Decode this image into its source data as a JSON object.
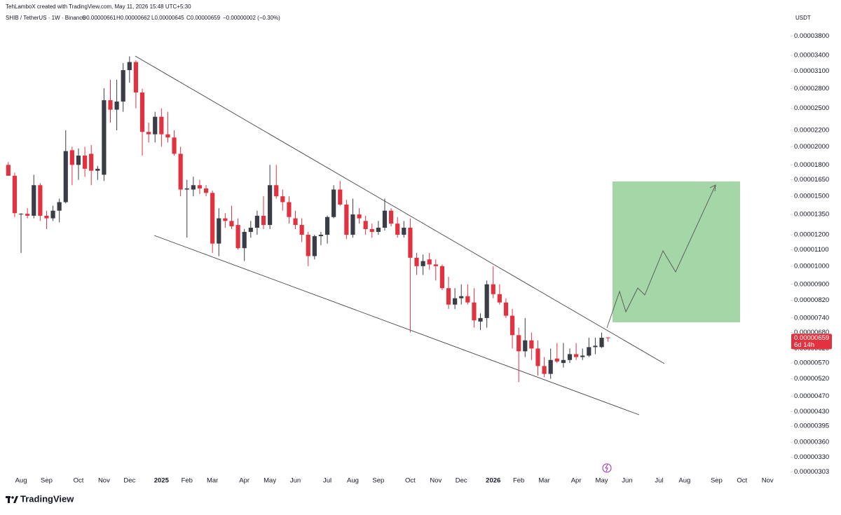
{
  "chart_data": {
    "type": "candlestick",
    "credit": "TehLamboX created with TradingView.com, May 11, 2026 15:48 UTC+5:30",
    "title": "SHIB / TetherUS · 1W · Binance",
    "ohlc_legend": {
      "open": "O0.00000661",
      "high": "H0.00000662",
      "low": "L0.00000645",
      "close": "C0.00000659",
      "change": "−0.00000002 (−0.30%)"
    },
    "y_axis_label": "USDT",
    "last_price": {
      "label": "0.00000659",
      "countdown": "6d 14h"
    },
    "brand": "TradingView",
    "log_scale": true,
    "grid": false,
    "up_color": "#3a3d45",
    "down_color": "#e2323f",
    "ylim": [
      2.95e-06,
      4e-05
    ],
    "yticks": [
      {
        "value": 3.8e-05,
        "label": "0.00003800"
      },
      {
        "value": 3.4e-05,
        "label": "0.00003400"
      },
      {
        "value": 3.1e-05,
        "label": "0.00003100"
      },
      {
        "value": 2.8e-05,
        "label": "0.00002800"
      },
      {
        "value": 2.5e-05,
        "label": "0.00002500"
      },
      {
        "value": 2.2e-05,
        "label": "0.00002200"
      },
      {
        "value": 2e-05,
        "label": "0.00002000"
      },
      {
        "value": 1.8e-05,
        "label": "0.00001800"
      },
      {
        "value": 1.65e-05,
        "label": "0.00001650"
      },
      {
        "value": 1.5e-05,
        "label": "0.00001500"
      },
      {
        "value": 1.35e-05,
        "label": "0.00001350"
      },
      {
        "value": 1.2e-05,
        "label": "0.00001200"
      },
      {
        "value": 1.1e-05,
        "label": "0.00001100"
      },
      {
        "value": 1e-05,
        "label": "0.00001000"
      },
      {
        "value": 9e-06,
        "label": "0.00000900"
      },
      {
        "value": 8.2e-06,
        "label": "0.00000820"
      },
      {
        "value": 7.4e-06,
        "label": "0.00000740"
      },
      {
        "value": 6.8e-06,
        "label": "0.00000680"
      },
      {
        "value": 6.2e-06,
        "label": "0.00000620"
      },
      {
        "value": 5.7e-06,
        "label": "0.00000570"
      },
      {
        "value": 5.2e-06,
        "label": "0.00000520"
      },
      {
        "value": 4.7e-06,
        "label": "0.00000470"
      },
      {
        "value": 4.3e-06,
        "label": "0.00000430"
      },
      {
        "value": 3.95e-06,
        "label": "0.00000395"
      },
      {
        "value": 3.6e-06,
        "label": "0.00000360"
      },
      {
        "value": 3.3e-06,
        "label": "0.00000330"
      },
      {
        "value": 3.03e-06,
        "label": "0.00000303"
      }
    ],
    "xlim": [
      -1.3,
      122.6
    ],
    "xticks": [
      {
        "value": 2,
        "label": "Aug"
      },
      {
        "value": 6,
        "label": "Sep"
      },
      {
        "value": 11,
        "label": "Oct"
      },
      {
        "value": 15,
        "label": "Nov"
      },
      {
        "value": 19,
        "label": "Dec"
      },
      {
        "value": 24,
        "label": "2025"
      },
      {
        "value": 28,
        "label": "Feb"
      },
      {
        "value": 32,
        "label": "Mar"
      },
      {
        "value": 37,
        "label": "Apr"
      },
      {
        "value": 41,
        "label": "May"
      },
      {
        "value": 45,
        "label": "Jun"
      },
      {
        "value": 50,
        "label": "Jul"
      },
      {
        "value": 54,
        "label": "Aug"
      },
      {
        "value": 58,
        "label": "Sep"
      },
      {
        "value": 63,
        "label": "Oct"
      },
      {
        "value": 67,
        "label": "Nov"
      },
      {
        "value": 71,
        "label": "Dec"
      },
      {
        "value": 76,
        "label": "2026"
      },
      {
        "value": 80,
        "label": "Feb"
      },
      {
        "value": 84,
        "label": "Mar"
      },
      {
        "value": 89,
        "label": "Apr"
      },
      {
        "value": 93,
        "label": "May"
      },
      {
        "value": 97,
        "label": "Jun"
      },
      {
        "value": 102,
        "label": "Jul"
      },
      {
        "value": 106,
        "label": "Aug"
      },
      {
        "value": 111,
        "label": "Sep"
      },
      {
        "value": 115,
        "label": "Oct"
      },
      {
        "value": 119,
        "label": "Nov"
      }
    ],
    "open": [
      1.8e-05,
      1.69e-05,
      1.35e-05,
      1.355e-05,
      1.34e-05,
      1.6e-05,
      1.34e-05,
      1.32e-05,
      1.38e-05,
      1.45e-05,
      1.96e-05,
      1.8e-05,
      1.9e-05,
      1.92e-05,
      1.74e-05,
      1.7e-05,
      2.62e-05,
      2.48e-05,
      2.6e-05,
      3.12e-05,
      3.27e-05,
      2.74e-05,
      2.18e-05,
      2.15e-05,
      2.38e-05,
      2.15e-05,
      2.11e-05,
      1.92e-05,
      1.56e-05,
      1.56e-05,
      1.6e-05,
      1.57e-05,
      1.53e-05,
      1.14e-05,
      1.32e-05,
      1.3e-05,
      1.27e-05,
      1.11e-05,
      1.22e-05,
      1.25e-05,
      1.34e-05,
      1.27e-05,
      1.6e-05,
      1.5e-05,
      1.45e-05,
      1.32e-05,
      1.27e-05,
      1.2e-05,
      1.06e-05,
      1.19e-05,
      1.2e-05,
      1.33e-05,
      1.56e-05,
      1.43e-05,
      1.2e-05,
      1.35e-05,
      1.3e-05,
      1.24e-05,
      1.22e-05,
      1.25e-05,
      1.38e-05,
      1.28e-05,
      1.2e-05,
      1.25e-05,
      1.05e-05,
      1e-05,
      1.04e-05,
      1.01e-05,
      1e-05,
      8.8e-06,
      8e-06,
      8.3e-06,
      8.4e-06,
      8.1e-06,
      7.25e-06,
      7.4e-06,
      9e-06,
      8.5e-06,
      8.1e-06,
      7.5e-06,
      6.7e-06,
      6.1e-06,
      6.5e-06,
      6.2e-06,
      5.6e-06,
      5.35e-06,
      5.85e-06,
      5.7e-06,
      5.8e-06,
      6e-06,
      5.9e-06,
      5.95e-06,
      6.25e-06,
      6.25e-06,
      6.61e-06
    ],
    "high": [
      1.83e-05,
      1.72e-05,
      1.36e-05,
      1.4e-05,
      1.7e-05,
      1.62e-05,
      1.38e-05,
      1.42e-05,
      1.48e-05,
      2.2e-05,
      2e-05,
      1.98e-05,
      2e-05,
      2.02e-05,
      1.79e-05,
      2.81e-05,
      2.95e-05,
      2.95e-05,
      3.25e-05,
      3.38e-05,
      3.3e-05,
      2.8e-05,
      2.3e-05,
      2.45e-05,
      2.5e-05,
      2.45e-05,
      2.2e-05,
      2e-05,
      1.65e-05,
      1.68e-05,
      1.65e-05,
      1.6e-05,
      1.55e-05,
      1.4e-05,
      1.36e-05,
      1.42e-05,
      1.32e-05,
      1.24e-05,
      1.3e-05,
      1.38e-05,
      1.5e-05,
      1.8e-05,
      1.8e-05,
      1.56e-05,
      1.5e-05,
      1.38e-05,
      1.32e-05,
      1.22e-05,
      1.2e-05,
      1.22e-05,
      1.34e-05,
      1.6e-05,
      1.64e-05,
      1.47e-05,
      1.48e-05,
      1.4e-05,
      1.34e-05,
      1.28e-05,
      1.3e-05,
      1.48e-05,
      1.4e-05,
      1.33e-05,
      1.3e-05,
      1.32e-05,
      1.08e-05,
      1.07e-05,
      1.08e-05,
      1.04e-05,
      1.01e-05,
      9.4e-06,
      8.8e-06,
      9e-06,
      9e-06,
      8.8e-06,
      7.6e-06,
      9.2e-06,
      1e-05,
      9e-06,
      8.3e-06,
      7.8e-06,
      7e-06,
      7.4e-06,
      6.8e-06,
      6.5e-06,
      5.9e-06,
      6.2e-06,
      6.4e-06,
      6.4e-06,
      6.2e-06,
      6.4e-06,
      6.2e-06,
      6.6e-06,
      6.6e-06,
      6.8e-06,
      6.62e-06
    ],
    "low": [
      1.7e-05,
      1.33e-05,
      1.08e-05,
      1.32e-05,
      1.32e-05,
      1.3e-05,
      1.24e-05,
      1.3e-05,
      1.29e-05,
      1.44e-05,
      1.6e-05,
      1.65e-05,
      1.68e-05,
      1.6e-05,
      1.65e-05,
      1.64e-05,
      2.3e-05,
      2.2e-05,
      2.45e-05,
      2.9e-05,
      2.5e-05,
      1.9e-05,
      2.05e-05,
      2.05e-05,
      2e-05,
      2.05e-05,
      1.9e-05,
      1.5e-05,
      1.18e-05,
      1.5e-05,
      1.52e-05,
      1.5e-05,
      1.08e-05,
      1.06e-05,
      1.25e-05,
      1.24e-05,
      1.1e-05,
      1.03e-05,
      1.18e-05,
      1.2e-05,
      1.24e-05,
      1.24e-05,
      1.48e-05,
      1.38e-05,
      1.28e-05,
      1.24e-05,
      1.15e-05,
      1e-05,
      1.04e-05,
      1.13e-05,
      1.14e-05,
      1.32e-05,
      1.42e-05,
      1.17e-05,
      1.18e-05,
      1.28e-05,
      1.2e-05,
      1.18e-05,
      1.2e-05,
      1.23e-05,
      1.26e-05,
      1.18e-05,
      1.18e-05,
      6.8e-06,
      9.5e-06,
      9.5e-06,
      9.8e-06,
      9.2e-06,
      8.7e-06,
      7.8e-06,
      7.8e-06,
      8e-06,
      8e-06,
      7e-06,
      6.9e-06,
      7e-06,
      8.3e-06,
      8e-06,
      7.4e-06,
      6.2e-06,
      5.1e-06,
      5.9e-06,
      5.8e-06,
      5.3e-06,
      5.25e-06,
      5.2e-06,
      5.7e-06,
      5.55e-06,
      5.7e-06,
      5.8e-06,
      5.8e-06,
      5.9e-06,
      6e-06,
      6.22e-06,
      6.45e-06
    ],
    "close": [
      1.69e-05,
      1.36e-05,
      1.355e-05,
      1.34e-05,
      1.6e-05,
      1.34e-05,
      1.32e-05,
      1.38e-05,
      1.45e-05,
      1.95e-05,
      1.8e-05,
      1.9e-05,
      1.76e-05,
      1.74e-05,
      1.76e-05,
      2.62e-05,
      2.48e-05,
      2.6e-05,
      3.12e-05,
      3.27e-05,
      2.74e-05,
      2.18e-05,
      2.15e-05,
      2.38e-05,
      2.15e-05,
      2.11e-05,
      1.92e-05,
      1.56e-05,
      1.57e-05,
      1.6e-05,
      1.57e-05,
      1.53e-05,
      1.14e-05,
      1.32e-05,
      1.3e-05,
      1.26e-05,
      1.11e-05,
      1.22e-05,
      1.25e-05,
      1.34e-05,
      1.27e-05,
      1.6e-05,
      1.5e-05,
      1.45e-05,
      1.33e-05,
      1.27e-05,
      1.2e-05,
      1.06e-05,
      1.19e-05,
      1.2e-05,
      1.33e-05,
      1.56e-05,
      1.43e-05,
      1.2e-05,
      1.35e-05,
      1.32e-05,
      1.24e-05,
      1.22e-05,
      1.25e-05,
      1.38e-05,
      1.28e-05,
      1.2e-05,
      1.25e-05,
      1.05e-05,
      1e-05,
      1.03e-05,
      1.01e-05,
      1e-05,
      8.8e-06,
      8e-06,
      8.3e-06,
      8.4e-06,
      8.1e-06,
      7.3e-06,
      7.4e-06,
      9e-06,
      8.5e-06,
      8.1e-06,
      7.5e-06,
      6.7e-06,
      6.1e-06,
      6.5e-06,
      6.2e-06,
      5.6e-06,
      5.35e-06,
      5.8e-06,
      5.75e-06,
      5.8e-06,
      6e-06,
      5.9e-06,
      5.95e-06,
      6.25e-06,
      6.3e-06,
      6.6e-06,
      6.59e-06
    ]
  }
}
